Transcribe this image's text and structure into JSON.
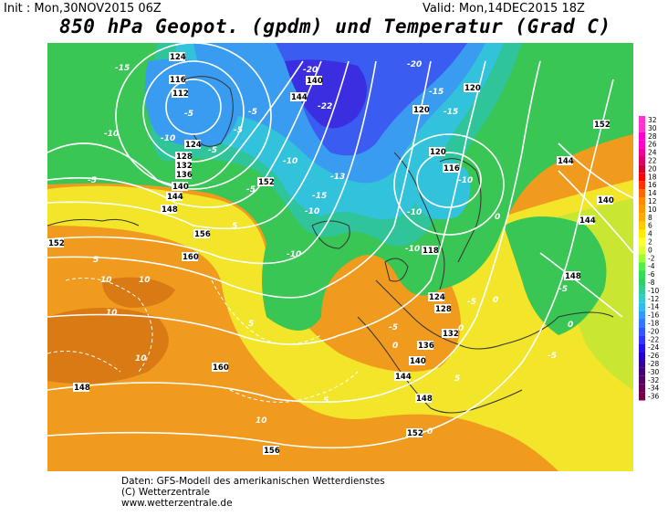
{
  "header": {
    "init": "Init : Mon,30NOV2015 06Z",
    "valid": "Valid: Mon,14DEC2015 18Z",
    "title": "850 hPa Geopot. (gpdm) und Temperatur (Grad C)"
  },
  "footer": {
    "line1": "Daten: GFS-Modell des amerikanischen Wetterdienstes",
    "line2": "(C) Wetterzentrale",
    "line3": "www.wetterzentrale.de"
  },
  "legend": {
    "ticks": [
      "32",
      "30",
      "28",
      "26",
      "24",
      "22",
      "20",
      "18",
      "16",
      "14",
      "12",
      "10",
      "8",
      "6",
      "4",
      "2",
      "0",
      "-2",
      "-4",
      "-6",
      "-8",
      "-10",
      "-12",
      "-14",
      "-16",
      "-18",
      "-20",
      "-22",
      "-24",
      "-26",
      "-28",
      "-30",
      "-32",
      "-34",
      "-36"
    ],
    "colors": [
      "#ff33cc",
      "#ff33cc",
      "#ff00cc",
      "#ff00cc",
      "#ee0099",
      "#dd0066",
      "#cc0033",
      "#ff0000",
      "#ff3300",
      "#ff6600",
      "#ff8800",
      "#ff9900",
      "#ffaa00",
      "#ffcc00",
      "#ffee00",
      "#ffff33",
      "#ddff33",
      "#99ff33",
      "#55ee44",
      "#33dd55",
      "#33cc66",
      "#33cc99",
      "#33cccc",
      "#33bbee",
      "#3399ff",
      "#3377ff",
      "#3355ff",
      "#3333ff",
      "#2211ee",
      "#2200cc",
      "#330099",
      "#440077",
      "#550066",
      "#660055",
      "#770044"
    ]
  },
  "map": {
    "geopotential_labels": [
      "124",
      "116",
      "112",
      "124",
      "128",
      "132",
      "136",
      "140",
      "144",
      "148",
      "152",
      "156",
      "160",
      "144",
      "140",
      "120",
      "120",
      "120",
      "116",
      "118",
      "152",
      "144",
      "140",
      "144",
      "148",
      "124",
      "128",
      "132",
      "136",
      "140",
      "144",
      "148",
      "152",
      "156",
      "160",
      "148",
      "152"
    ],
    "temperature_labels": [
      "-15",
      "-10",
      "-5",
      "-10",
      "-5",
      "-5",
      "-5",
      "-5",
      "-5",
      "-10",
      "-10",
      "-15",
      "-13",
      "-20",
      "-22",
      "-20",
      "-15",
      "-15",
      "-10",
      "-10",
      "-10",
      "-10",
      "-5",
      "-5",
      "-5",
      "0",
      "0",
      "0",
      "0",
      "5",
      "5",
      "5",
      "10",
      "10",
      "10",
      "10",
      "10",
      "5",
      "5",
      "0",
      "0",
      "-5"
    ],
    "colors": {
      "orange": "#f09a1e",
      "dark_orange": "#d97a14",
      "yellow": "#f2e52a",
      "yellow_green": "#c8e632",
      "green": "#39c654",
      "teal": "#2fc49a",
      "cyan": "#33c2dc",
      "light_blue": "#3a9cf0",
      "blue": "#3a5cf0",
      "violet": "#3a2ee0",
      "coast": "#333333",
      "isoline": "#ffffff"
    }
  }
}
